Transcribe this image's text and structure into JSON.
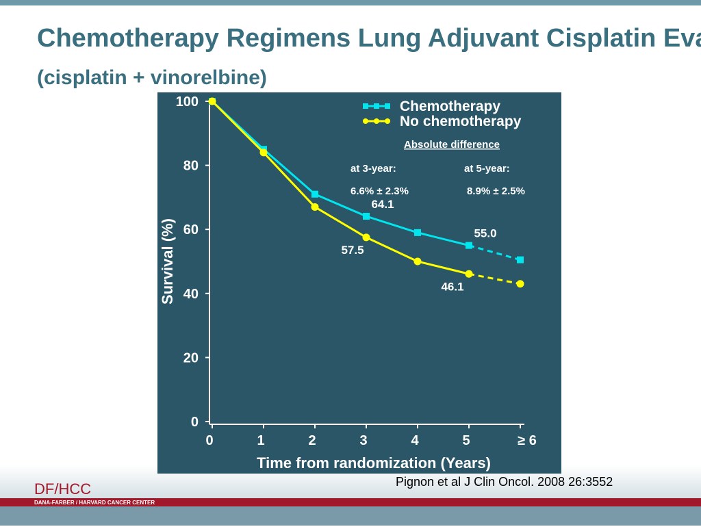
{
  "title": "Chemotherapy Regimens Lung Adjuvant Cisplatin Evaluation",
  "subtitle": "(cisplatin + vinorelbine)",
  "citation": "Pignon et al  J Clin Oncol. 2008 26:3552",
  "logo": {
    "name": "DF/HCC",
    "full_name": "DANA-FARBER / HARVARD CANCER CENTER"
  },
  "chart_data": {
    "type": "line",
    "xlabel": "Time from randomization (Years)",
    "ylabel": "Survival (%)",
    "x": [
      0,
      1,
      2,
      3,
      4,
      5,
      6
    ],
    "xlim": [
      0,
      6
    ],
    "xticks": [
      0,
      1,
      2,
      3,
      4,
      5,
      {
        "value": 6,
        "label": "≥ 6"
      }
    ],
    "ylim": [
      0,
      100
    ],
    "yticks": [
      0,
      20,
      40,
      60,
      80,
      100
    ],
    "series": [
      {
        "name": "Chemotherapy",
        "color": "#00e5ee",
        "marker": "square",
        "values": [
          100,
          85,
          71,
          64.1,
          59,
          55.0,
          50.5
        ],
        "value_labels": [
          null,
          null,
          null,
          "64.1",
          null,
          "55.0",
          null
        ]
      },
      {
        "name": "No chemotherapy",
        "color": "#ffff00",
        "marker": "circle",
        "values": [
          100,
          84,
          67,
          57.5,
          50,
          46.1,
          43
        ],
        "value_labels": [
          null,
          null,
          null,
          "57.5",
          null,
          "46.1",
          null
        ]
      }
    ],
    "annotations": {
      "heading": "Absolute difference",
      "year3": "at 3-year:",
      "year5": "at 5-year:",
      "diff3": "6.6% ± 2.3%",
      "diff5": "8.9% ± 2.5%"
    }
  }
}
